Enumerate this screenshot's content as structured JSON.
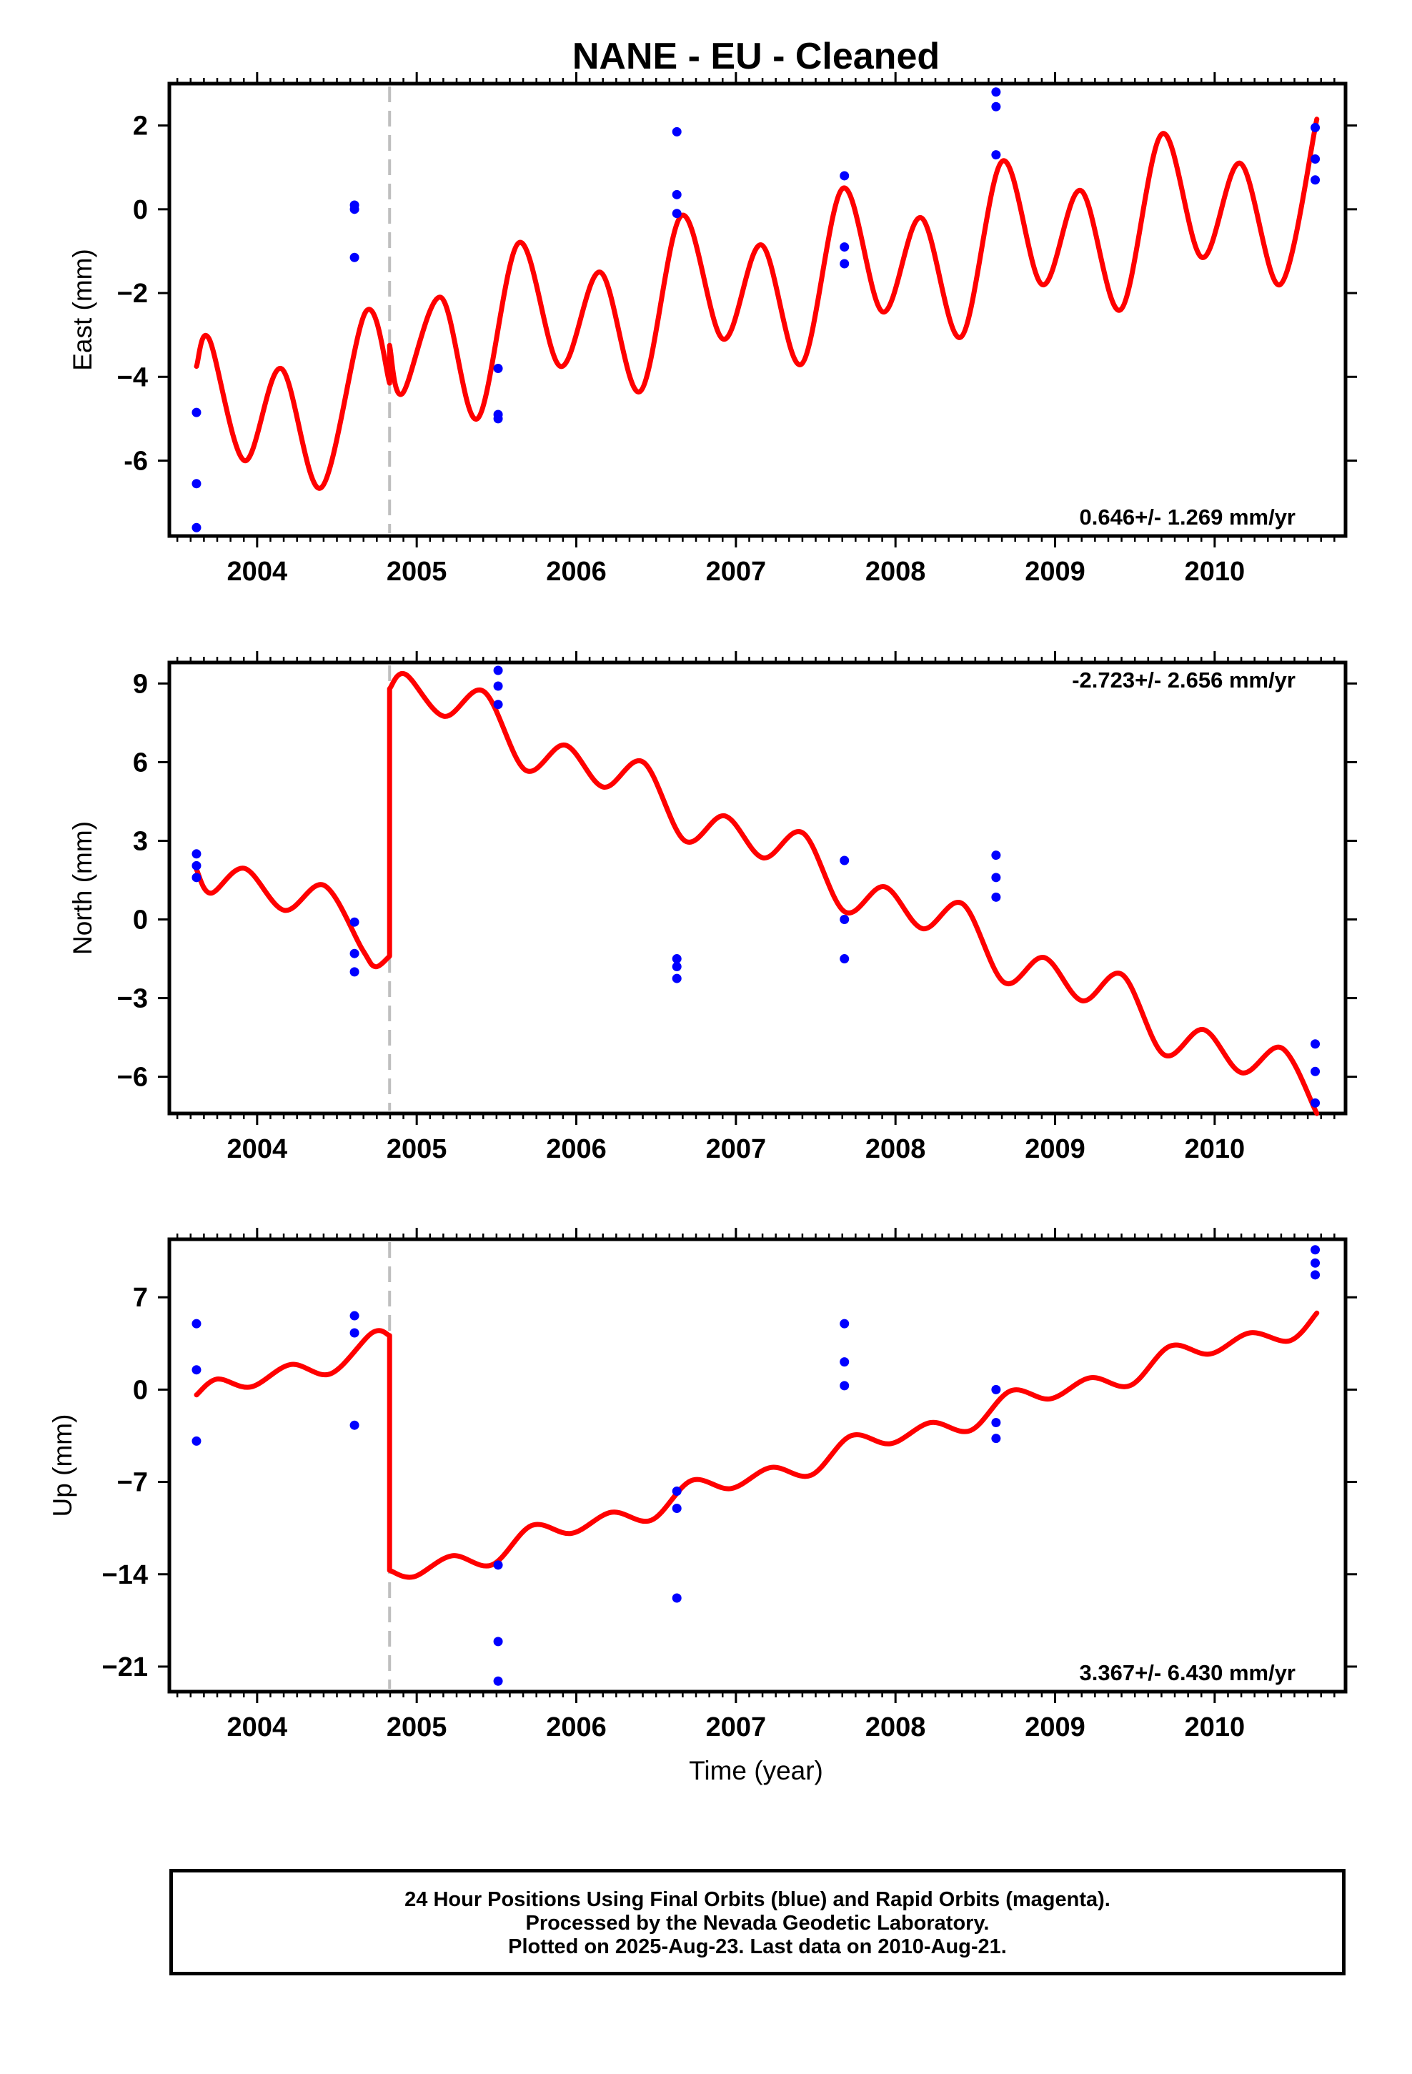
{
  "title": "NANE  - EU - Cleaned",
  "xlabel": "Time (year)",
  "footer": {
    "line1": "24 Hour Positions Using Final Orbits (blue) and Rapid Orbits (magenta).",
    "line2": "Processed by the Nevada Geodetic Laboratory.",
    "line3": "Plotted on 2025-Aug-23. Last data on 2010-Aug-21."
  },
  "colors": {
    "model": "#ff0000",
    "points": "#0000ff",
    "break": "#bfbfbf",
    "axis": "#000000"
  },
  "chart_data": [
    {
      "type": "scatter",
      "ylabel": "East (mm)",
      "rate_label": "0.646+/- 1.269 mm/yr",
      "rate_position": "bottom-right",
      "xlim": [
        2003.45,
        2010.82
      ],
      "ylim": [
        -7.8,
        3.0
      ],
      "xticks": [
        2004,
        2005,
        2006,
        2007,
        2008,
        2009,
        2010
      ],
      "xtick_labels": [
        "2004",
        "2005",
        "2006",
        "2007",
        "2008",
        "2009",
        "2010"
      ],
      "yticks": [
        2,
        0,
        -2,
        -4,
        -6
      ],
      "ytick_labels": [
        "2",
        "0",
        "−2",
        "−4",
        "-6"
      ],
      "break_line_x": 2004.83,
      "points": [
        [
          2003.62,
          -4.85
        ],
        [
          2003.62,
          -6.55
        ],
        [
          2003.62,
          -7.6
        ],
        [
          2004.61,
          0.1
        ],
        [
          2004.61,
          0.0
        ],
        [
          2004.61,
          -1.15
        ],
        [
          2005.51,
          -3.8
        ],
        [
          2005.51,
          -4.9
        ],
        [
          2005.51,
          -5.0
        ],
        [
          2006.63,
          1.85
        ],
        [
          2006.63,
          0.35
        ],
        [
          2006.63,
          -0.1
        ],
        [
          2007.68,
          0.8
        ],
        [
          2007.68,
          -0.9
        ],
        [
          2007.68,
          -1.3
        ],
        [
          2008.63,
          2.8
        ],
        [
          2008.63,
          2.45
        ],
        [
          2008.63,
          1.3
        ],
        [
          2010.63,
          1.95
        ],
        [
          2010.63,
          1.2
        ],
        [
          2010.63,
          0.7
        ]
      ],
      "model_segments": [
        {
          "from": 2003.62,
          "to": 2004.83,
          "points": [
            [
              2003.62,
              -3.75
            ],
            [
              2003.7,
              -3.1
            ],
            [
              2003.92,
              -6.0
            ],
            [
              2004.15,
              -3.8
            ],
            [
              2004.4,
              -6.65
            ],
            [
              2004.68,
              -2.45
            ],
            [
              2004.83,
              -4.15
            ]
          ]
        },
        {
          "from": 2004.83,
          "to": 2010.64,
          "points": [
            [
              2004.83,
              -3.25
            ],
            [
              2004.91,
              -4.4
            ],
            [
              2005.15,
              -2.1
            ],
            [
              2005.38,
              -5.0
            ],
            [
              2005.64,
              -0.8
            ],
            [
              2005.9,
              -3.75
            ],
            [
              2006.15,
              -1.5
            ],
            [
              2006.4,
              -4.35
            ],
            [
              2006.66,
              -0.15
            ],
            [
              2006.92,
              -3.1
            ],
            [
              2007.16,
              -0.85
            ],
            [
              2007.41,
              -3.7
            ],
            [
              2007.67,
              0.5
            ],
            [
              2007.92,
              -2.45
            ],
            [
              2008.16,
              -0.2
            ],
            [
              2008.41,
              -3.05
            ],
            [
              2008.67,
              1.15
            ],
            [
              2008.92,
              -1.8
            ],
            [
              2009.16,
              0.45
            ],
            [
              2009.41,
              -2.4
            ],
            [
              2009.67,
              1.8
            ],
            [
              2009.92,
              -1.15
            ],
            [
              2010.16,
              1.1
            ],
            [
              2010.41,
              -1.8
            ],
            [
              2010.64,
              2.15
            ]
          ]
        }
      ]
    },
    {
      "type": "scatter",
      "ylabel": "North (mm)",
      "rate_label": "-2.723+/- 2.656 mm/yr",
      "rate_position": "top-right",
      "xlim": [
        2003.45,
        2010.82
      ],
      "ylim": [
        -7.4,
        9.8
      ],
      "xticks": [
        2004,
        2005,
        2006,
        2007,
        2008,
        2009,
        2010
      ],
      "xtick_labels": [
        "2004",
        "2005",
        "2006",
        "2007",
        "2008",
        "2009",
        "2010"
      ],
      "yticks": [
        9,
        6,
        3,
        0,
        -3,
        -6
      ],
      "ytick_labels": [
        "9",
        "6",
        "3",
        "0",
        "−3",
        "−6"
      ],
      "break_line_x": 2004.83,
      "points": [
        [
          2003.62,
          2.5
        ],
        [
          2003.62,
          2.05
        ],
        [
          2003.62,
          1.6
        ],
        [
          2004.61,
          -0.1
        ],
        [
          2004.61,
          -1.3
        ],
        [
          2004.61,
          -2.0
        ],
        [
          2005.51,
          9.5
        ],
        [
          2005.51,
          8.9
        ],
        [
          2005.51,
          8.2
        ],
        [
          2006.63,
          -1.5
        ],
        [
          2006.63,
          -1.8
        ],
        [
          2006.63,
          -2.25
        ],
        [
          2007.68,
          2.25
        ],
        [
          2007.68,
          0.0
        ],
        [
          2007.68,
          -1.5
        ],
        [
          2008.63,
          2.45
        ],
        [
          2008.63,
          1.6
        ],
        [
          2008.63,
          0.85
        ],
        [
          2010.63,
          -4.75
        ],
        [
          2010.63,
          -5.8
        ],
        [
          2010.63,
          -7.0
        ]
      ],
      "model_segments": [
        {
          "from": 2003.62,
          "to": 2004.83,
          "points": [
            [
              2003.62,
              1.9
            ],
            [
              2003.71,
              1.0
            ],
            [
              2003.92,
              1.95
            ],
            [
              2004.17,
              0.35
            ],
            [
              2004.42,
              1.3
            ],
            [
              2004.66,
              -1.15
            ],
            [
              2004.74,
              -1.8
            ],
            [
              2004.83,
              -1.4
            ]
          ]
        },
        {
          "from": 2004.83,
          "to": 2010.64,
          "points": [
            [
              2004.83,
              8.8
            ],
            [
              2004.93,
              9.35
            ],
            [
              2005.17,
              7.75
            ],
            [
              2005.42,
              8.7
            ],
            [
              2005.68,
              5.7
            ],
            [
              2005.93,
              6.65
            ],
            [
              2006.17,
              5.05
            ],
            [
              2006.42,
              6.0
            ],
            [
              2006.68,
              3.0
            ],
            [
              2006.93,
              3.95
            ],
            [
              2007.17,
              2.35
            ],
            [
              2007.42,
              3.3
            ],
            [
              2007.68,
              0.3
            ],
            [
              2007.93,
              1.25
            ],
            [
              2008.17,
              -0.35
            ],
            [
              2008.42,
              0.6
            ],
            [
              2008.68,
              -2.4
            ],
            [
              2008.93,
              -1.45
            ],
            [
              2009.17,
              -3.1
            ],
            [
              2009.42,
              -2.1
            ],
            [
              2009.68,
              -5.15
            ],
            [
              2009.93,
              -4.2
            ],
            [
              2010.17,
              -5.85
            ],
            [
              2010.42,
              -4.9
            ],
            [
              2010.64,
              -7.4
            ]
          ]
        }
      ]
    },
    {
      "type": "scatter",
      "ylabel": "Up (mm)",
      "rate_label": "3.367+/- 6.430 mm/yr",
      "rate_position": "bottom-right",
      "xlim": [
        2003.45,
        2010.82
      ],
      "ylim": [
        -22.9,
        11.4
      ],
      "xticks": [
        2004,
        2005,
        2006,
        2007,
        2008,
        2009,
        2010
      ],
      "xtick_labels": [
        "2004",
        "2005",
        "2006",
        "2007",
        "2008",
        "2009",
        "2010"
      ],
      "yticks": [
        7,
        0,
        -7,
        -14,
        -21
      ],
      "ytick_labels": [
        "7",
        "0",
        "−7",
        "−14",
        "−21"
      ],
      "break_line_x": 2004.83,
      "points": [
        [
          2003.62,
          5.0
        ],
        [
          2003.62,
          1.5
        ],
        [
          2003.62,
          -3.9
        ],
        [
          2004.61,
          5.6
        ],
        [
          2004.61,
          4.3
        ],
        [
          2004.61,
          -2.7
        ],
        [
          2005.51,
          -13.3
        ],
        [
          2005.51,
          -19.1
        ],
        [
          2005.51,
          -22.1
        ],
        [
          2006.63,
          -7.7
        ],
        [
          2006.63,
          -9.0
        ],
        [
          2006.63,
          -15.8
        ],
        [
          2007.68,
          5.0
        ],
        [
          2007.68,
          2.1
        ],
        [
          2007.68,
          0.3
        ],
        [
          2008.63,
          0.0
        ],
        [
          2008.63,
          -2.5
        ],
        [
          2008.63,
          -3.7
        ],
        [
          2010.63,
          10.6
        ],
        [
          2010.63,
          9.6
        ],
        [
          2010.63,
          8.7
        ]
      ],
      "model_segments": [
        {
          "from": 2003.62,
          "to": 2004.83,
          "points": [
            [
              2003.62,
              -0.4
            ],
            [
              2003.75,
              0.8
            ],
            [
              2003.96,
              0.2
            ],
            [
              2004.21,
              1.9
            ],
            [
              2004.46,
              1.2
            ],
            [
              2004.72,
              4.3
            ],
            [
              2004.83,
              4.1
            ]
          ]
        },
        {
          "from": 2004.83,
          "to": 2010.64,
          "points": [
            [
              2004.83,
              -13.7
            ],
            [
              2004.98,
              -14.2
            ],
            [
              2005.22,
              -12.6
            ],
            [
              2005.47,
              -13.3
            ],
            [
              2005.72,
              -10.3
            ],
            [
              2005.97,
              -10.9
            ],
            [
              2006.22,
              -9.3
            ],
            [
              2006.47,
              -9.9
            ],
            [
              2006.72,
              -6.9
            ],
            [
              2006.97,
              -7.5
            ],
            [
              2007.22,
              -5.9
            ],
            [
              2007.47,
              -6.5
            ],
            [
              2007.72,
              -3.5
            ],
            [
              2007.97,
              -4.1
            ],
            [
              2008.22,
              -2.5
            ],
            [
              2008.47,
              -3.1
            ],
            [
              2008.72,
              -0.1
            ],
            [
              2008.97,
              -0.7
            ],
            [
              2009.22,
              0.9
            ],
            [
              2009.47,
              0.3
            ],
            [
              2009.72,
              3.3
            ],
            [
              2009.97,
              2.7
            ],
            [
              2010.22,
              4.3
            ],
            [
              2010.47,
              3.7
            ],
            [
              2010.64,
              5.8
            ]
          ]
        }
      ]
    }
  ]
}
